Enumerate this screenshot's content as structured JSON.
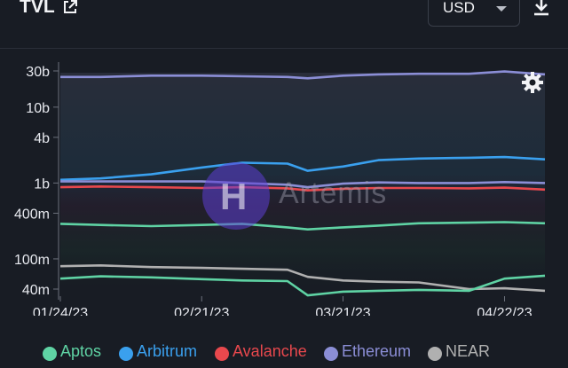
{
  "header": {
    "title": "TVL",
    "currency": "USD",
    "icons": {
      "external": "external-link-icon",
      "caret": "chevron-down-icon",
      "download": "download-icon",
      "settings": "gear-icon"
    }
  },
  "watermark": "Artemis",
  "colors": {
    "background": "#181c24",
    "Aptos": "#5fd3a4",
    "Arbitrum": "#3aa0ee",
    "Avalanche": "#e8484d",
    "Ethereum": "#8b8ed6",
    "NEAR": "#b0b0b0"
  },
  "chart_data": {
    "type": "line",
    "title": "TVL",
    "yscale": "log",
    "ylim": [
      30000000,
      35000000000
    ],
    "y_ticks": [
      {
        "value": 30000000000,
        "label": "30b"
      },
      {
        "value": 10000000000,
        "label": "10b"
      },
      {
        "value": 4000000000,
        "label": "4b"
      },
      {
        "value": 1000000000,
        "label": "1b"
      },
      {
        "value": 400000000,
        "label": "400m"
      },
      {
        "value": 100000000,
        "label": "100m"
      },
      {
        "value": 40000000,
        "label": "40m"
      }
    ],
    "x_ticks": [
      "01/24/23",
      "02/21/23",
      "03/21/23",
      "04/22/23"
    ],
    "x_range": [
      "01/24/23",
      "04/30/23"
    ],
    "grid": false,
    "legend": "bottom",
    "series": [
      {
        "name": "Ethereum",
        "x": [
          "01/24/23",
          "02/01/23",
          "02/11/23",
          "02/21/23",
          "03/01/23",
          "03/10/23",
          "03/14/23",
          "03/21/23",
          "03/28/23",
          "04/05/23",
          "04/15/23",
          "04/22/23",
          "04/30/23"
        ],
        "values": [
          25000000000,
          25000000000,
          26000000000,
          26000000000,
          25500000000,
          25000000000,
          24000000000,
          26000000000,
          27000000000,
          27500000000,
          27500000000,
          29500000000,
          27000000000
        ]
      },
      {
        "name": "Arbitrum",
        "x": [
          "01/24/23",
          "02/01/23",
          "02/11/23",
          "02/21/23",
          "03/01/23",
          "03/10/23",
          "03/14/23",
          "03/21/23",
          "03/28/23",
          "04/05/23",
          "04/15/23",
          "04/22/23",
          "04/30/23"
        ],
        "values": [
          1100000000,
          1150000000,
          1300000000,
          1600000000,
          1850000000,
          1800000000,
          1450000000,
          1650000000,
          2000000000,
          2100000000,
          2150000000,
          2200000000,
          2050000000
        ]
      },
      {
        "name": "Ethereum",
        "x": [
          "01/24/23",
          "02/01/23",
          "02/11/23",
          "02/21/23",
          "03/01/23",
          "03/10/23",
          "03/14/23",
          "03/21/23",
          "03/28/23",
          "04/05/23",
          "04/15/23",
          "04/22/23",
          "04/30/23"
        ],
        "values": [
          1050000000,
          1050000000,
          1050000000,
          1050000000,
          1000000000,
          950000000,
          880000000,
          980000000,
          1020000000,
          1000000000,
          1000000000,
          1030000000,
          1000000000
        ]
      },
      {
        "name": "Avalanche",
        "x": [
          "01/24/23",
          "02/01/23",
          "02/11/23",
          "02/21/23",
          "03/01/23",
          "03/10/23",
          "03/14/23",
          "03/21/23",
          "03/28/23",
          "04/05/23",
          "04/15/23",
          "04/22/23",
          "04/30/23"
        ],
        "values": [
          880000000,
          900000000,
          880000000,
          860000000,
          880000000,
          850000000,
          800000000,
          840000000,
          860000000,
          860000000,
          850000000,
          870000000,
          820000000
        ]
      },
      {
        "name": "Aptos",
        "x": [
          "01/24/23",
          "02/01/23",
          "02/11/23",
          "02/21/23",
          "03/01/23",
          "03/10/23",
          "03/14/23",
          "03/21/23",
          "03/28/23",
          "04/05/23",
          "04/15/23",
          "04/22/23",
          "04/30/23"
        ],
        "values": [
          290000000,
          280000000,
          270000000,
          280000000,
          290000000,
          260000000,
          245000000,
          260000000,
          275000000,
          295000000,
          300000000,
          305000000,
          295000000
        ]
      },
      {
        "name": "NEAR",
        "x": [
          "01/24/23",
          "02/01/23",
          "02/11/23",
          "02/21/23",
          "03/01/23",
          "03/10/23",
          "03/14/23",
          "03/21/23",
          "03/28/23",
          "04/05/23",
          "04/15/23",
          "04/22/23",
          "04/30/23"
        ],
        "values": [
          80000000,
          82000000,
          78000000,
          76000000,
          74000000,
          72000000,
          58000000,
          52000000,
          50000000,
          49000000,
          40000000,
          41000000,
          38000000
        ]
      },
      {
        "name": "Aptos",
        "x": [
          "01/24/23",
          "02/01/23",
          "02/11/23",
          "02/21/23",
          "03/01/23",
          "03/10/23",
          "03/14/23",
          "03/21/23",
          "03/28/23",
          "04/05/23",
          "04/15/23",
          "04/22/23",
          "04/30/23"
        ],
        "values": [
          55000000,
          59000000,
          57000000,
          54000000,
          52000000,
          51000000,
          33000000,
          37000000,
          38000000,
          39000000,
          38000000,
          55000000,
          60000000
        ]
      }
    ],
    "legend_entries": [
      {
        "name": "Aptos",
        "color": "#5fd3a4"
      },
      {
        "name": "Arbitrum",
        "color": "#3aa0ee"
      },
      {
        "name": "Avalanche",
        "color": "#e8484d"
      },
      {
        "name": "Ethereum",
        "color": "#8b8ed6"
      },
      {
        "name": "NEAR",
        "color": "#b0b0b0"
      }
    ]
  }
}
